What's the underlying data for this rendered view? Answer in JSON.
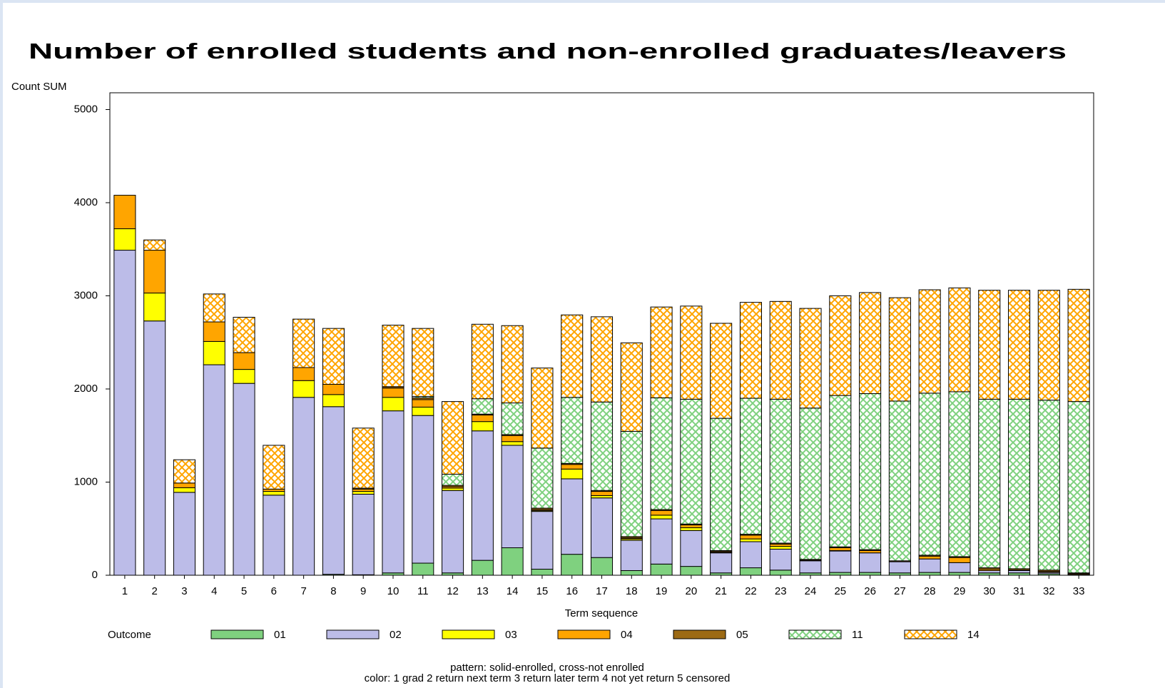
{
  "chart_data": {
    "type": "stacked_bar",
    "title": "Number of enrolled students and non-enrolled graduates/leavers",
    "y_label": "Count SUM",
    "x_label": "Term sequence",
    "legend_title": "Outcome",
    "notes": [
      "pattern: solid-enrolled, cross-not enrolled",
      "color: 1 grad 2 return next term 3 return later term 4 not yet return 5 censored"
    ],
    "categories": [
      "1",
      "2",
      "3",
      "4",
      "5",
      "6",
      "7",
      "8",
      "9",
      "10",
      "11",
      "12",
      "13",
      "14",
      "15",
      "16",
      "17",
      "18",
      "19",
      "20",
      "21",
      "22",
      "23",
      "24",
      "25",
      "26",
      "27",
      "28",
      "29",
      "30",
      "31",
      "32",
      "33"
    ],
    "ylim": [
      0,
      5180
    ],
    "yticks": [
      0,
      1000,
      2000,
      3000,
      4000,
      5000
    ],
    "series": [
      {
        "name": "01",
        "color": "#7fd17f",
        "pattern": "solid",
        "values": [
          0,
          0,
          0,
          0,
          0,
          0,
          0,
          10,
          5,
          25,
          130,
          25,
          160,
          295,
          65,
          225,
          190,
          50,
          120,
          95,
          25,
          80,
          55,
          25,
          30,
          30,
          25,
          30,
          30,
          25,
          25,
          15,
          5
        ]
      },
      {
        "name": "02",
        "color": "#bcbce8",
        "pattern": "solid",
        "values": [
          3490,
          2730,
          890,
          2260,
          2060,
          860,
          1910,
          1800,
          865,
          1740,
          1585,
          885,
          1390,
          1100,
          620,
          810,
          640,
          325,
          485,
          385,
          215,
          280,
          225,
          130,
          230,
          210,
          120,
          145,
          105,
          25,
          25,
          15,
          5
        ]
      },
      {
        "name": "03",
        "color": "#ffff00",
        "pattern": "solid",
        "values": [
          230,
          300,
          50,
          250,
          150,
          40,
          180,
          130,
          30,
          145,
          90,
          25,
          100,
          40,
          10,
          105,
          25,
          15,
          40,
          30,
          5,
          30,
          30,
          0,
          5,
          0,
          0,
          0,
          0,
          0,
          0,
          0,
          0
        ]
      },
      {
        "name": "04",
        "color": "#ffa500",
        "pattern": "solid",
        "values": [
          360,
          460,
          50,
          210,
          180,
          25,
          140,
          110,
          25,
          100,
          80,
          15,
          70,
          65,
          10,
          50,
          45,
          10,
          50,
          30,
          10,
          40,
          25,
          5,
          30,
          25,
          0,
          30,
          55,
          15,
          5,
          10,
          10
        ]
      },
      {
        "name": "05",
        "color": "#9c6a14",
        "pattern": "solid",
        "values": [
          0,
          0,
          0,
          0,
          0,
          0,
          0,
          0,
          10,
          15,
          20,
          15,
          10,
          10,
          15,
          10,
          10,
          15,
          10,
          10,
          10,
          10,
          10,
          10,
          10,
          10,
          10,
          10,
          10,
          15,
          15,
          15,
          5
        ]
      },
      {
        "name": "11",
        "color": "#7fd17f",
        "pattern": "cross",
        "values": [
          0,
          0,
          0,
          0,
          0,
          0,
          0,
          0,
          0,
          0,
          15,
          120,
          165,
          340,
          645,
          710,
          950,
          1130,
          1200,
          1340,
          1420,
          1460,
          1545,
          1625,
          1625,
          1675,
          1715,
          1740,
          1770,
          1810,
          1820,
          1825,
          1840
        ]
      },
      {
        "name": "14",
        "color": "#ffa500",
        "pattern": "cross",
        "values": [
          0,
          110,
          250,
          300,
          380,
          470,
          520,
          600,
          645,
          660,
          730,
          780,
          800,
          830,
          860,
          885,
          915,
          950,
          975,
          1000,
          1020,
          1030,
          1050,
          1070,
          1070,
          1085,
          1110,
          1110,
          1115,
          1170,
          1170,
          1180,
          1205
        ]
      }
    ]
  }
}
